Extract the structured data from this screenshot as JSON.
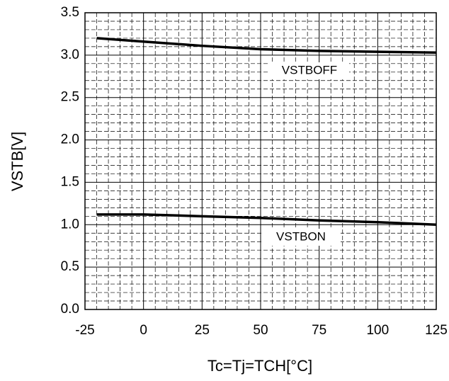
{
  "chart_data": {
    "type": "line",
    "xlabel": "Tc=Tj=TCH[°C]",
    "ylabel": "VSTB[V]",
    "x": [
      -20,
      0,
      25,
      50,
      75,
      100,
      125
    ],
    "series": [
      {
        "name": "VSTBOFF",
        "color": "#000000",
        "values": [
          3.2,
          3.16,
          3.11,
          3.07,
          3.05,
          3.04,
          3.03
        ]
      },
      {
        "name": "VSTBON",
        "color": "#000000",
        "values": [
          1.12,
          1.12,
          1.1,
          1.08,
          1.05,
          1.03,
          1.0
        ]
      }
    ],
    "xlim": [
      -25,
      125
    ],
    "xticks": [
      -25,
      0,
      25,
      50,
      75,
      100,
      125
    ],
    "ylim": [
      0,
      3.5
    ],
    "yticks": [
      {
        "value": 0,
        "label": "0.0"
      },
      0.5,
      {
        "value": 1,
        "label": "1.0"
      },
      1.5,
      {
        "value": 2,
        "label": "2.0"
      },
      2.5,
      {
        "value": 3,
        "label": "3.0"
      },
      3.5
    ],
    "grid": true,
    "minor_grid": true
  }
}
